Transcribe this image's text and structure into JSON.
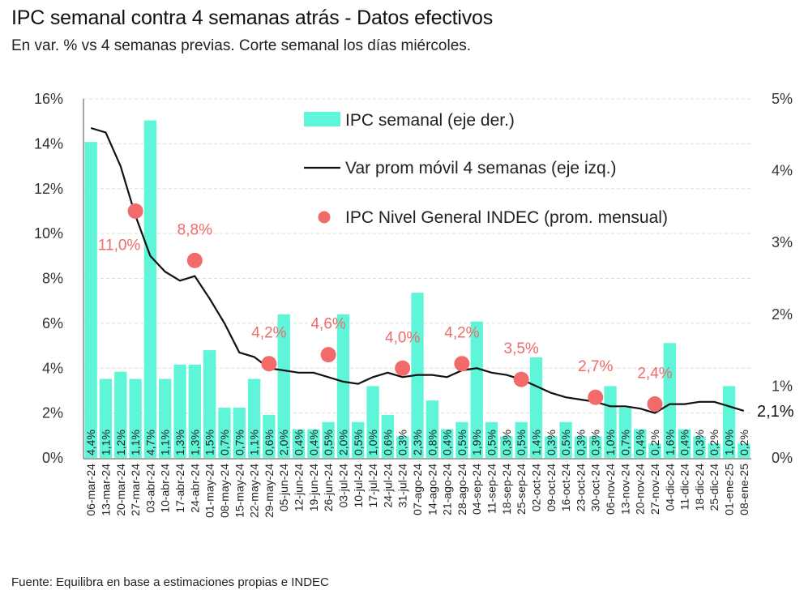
{
  "title": "IPC semanal contra 4 semanas atrás - Datos efectivos",
  "subtitle": "En var. % vs 4 semanas previas. Corte semanal los días miércoles.",
  "source": "Fuente: Equilibra en base a estimaciones propias e INDEC",
  "colors": {
    "bar": "#5ef5d8",
    "line": "#111111",
    "point": "#f26a6a",
    "grid": "#dddddd"
  },
  "chart_data": {
    "type": "bar+line+scatter",
    "title": "IPC semanal contra 4 semanas atrás - Datos efectivos",
    "left_axis": {
      "ylim": [
        0,
        16
      ],
      "ticks": [
        "0%",
        "2%",
        "4%",
        "6%",
        "8%",
        "10%",
        "12%",
        "14%",
        "16%"
      ]
    },
    "right_axis": {
      "ylim": [
        0,
        5
      ],
      "ticks": [
        "0%",
        "1%",
        "2%",
        "3%",
        "4%",
        "5%"
      ]
    },
    "grid": true,
    "legend_position": "top-right",
    "legend": [
      "IPC semanal (eje der.)",
      "Var prom móvil 4 semanas (eje izq.)",
      "IPC Nivel General INDEC (prom. mensual)"
    ],
    "categories": [
      "06-mar-24",
      "13-mar-24",
      "20-mar-24",
      "27-mar-24",
      "03-abr-24",
      "10-abr-24",
      "17-abr-24",
      "24-abr-24",
      "01-may-24",
      "08-may-24",
      "15-may-24",
      "22-may-24",
      "29-may-24",
      "05-jun-24",
      "12-jun-24",
      "19-jun-24",
      "26-jun-24",
      "03-jul-24",
      "10-jul-24",
      "17-jul-24",
      "24-jul-24",
      "31-jul-24",
      "07-ago-24",
      "14-ago-24",
      "21-ago-24",
      "28-ago-24",
      "04-sep-24",
      "11-sep-24",
      "18-sep-24",
      "25-sep-24",
      "02-oct-24",
      "09-oct-24",
      "16-oct-24",
      "23-oct-24",
      "30-oct-24",
      "06-nov-24",
      "13-nov-24",
      "20-nov-24",
      "27-nov-24",
      "04-dic-24",
      "11-dic-24",
      "18-dic-24",
      "25-dic-24",
      "01-ene-25",
      "08-ene-25"
    ],
    "series": [
      {
        "name": "IPC semanal (eje der.)",
        "axis": "right",
        "type": "bar",
        "values": [
          4.4,
          1.1,
          1.2,
          1.1,
          4.7,
          1.1,
          1.3,
          1.3,
          1.5,
          0.7,
          0.7,
          1.1,
          0.6,
          2.0,
          0.4,
          0.4,
          0.5,
          2.0,
          0.5,
          1.0,
          0.6,
          0.3,
          2.3,
          0.8,
          0.4,
          0.5,
          1.9,
          0.5,
          0.3,
          0.5,
          1.4,
          0.3,
          0.5,
          0.3,
          0.3,
          1.0,
          0.7,
          0.4,
          0.2,
          1.6,
          0.4,
          0.3,
          0.2,
          1.0,
          0.2
        ],
        "labels": [
          "4,4%",
          "1,1%",
          "1,2%",
          "1,1%",
          "4,7%",
          "1,1%",
          "1,3%",
          "1,3%",
          "1,5%",
          "0,7%",
          "0,7%",
          "1,1%",
          "0,6%",
          "2,0%",
          "0,4%",
          "0,4%",
          "0,5%",
          "2,0%",
          "0,5%",
          "1,0%",
          "0,6%",
          "0,3%",
          "2,3%",
          "0,8%",
          "0,4%",
          "0,5%",
          "1,9%",
          "0,5%",
          "0,3%",
          "0,5%",
          "1,4%",
          "0,3%",
          "0,5%",
          "0,3%",
          "0,3%",
          "1,0%",
          "0,7%",
          "0,4%",
          "0,2%",
          "1,6%",
          "0,4%",
          "0,3%",
          "0,2%",
          "1,0%",
          "0,2%"
        ]
      },
      {
        "name": "Var prom móvil 4 semanas (eje izq.)",
        "axis": "left",
        "type": "line",
        "values": [
          14.7,
          14.5,
          13.0,
          10.8,
          9.0,
          8.3,
          7.9,
          8.1,
          7.1,
          6.0,
          4.7,
          4.5,
          4.0,
          3.9,
          3.8,
          3.8,
          3.6,
          3.4,
          3.3,
          3.6,
          3.8,
          3.6,
          3.7,
          3.7,
          3.6,
          3.9,
          4.0,
          3.8,
          3.7,
          3.5,
          3.2,
          2.9,
          2.7,
          2.6,
          2.5,
          2.3,
          2.3,
          2.2,
          2.0,
          2.4,
          2.4,
          2.5,
          2.5,
          2.3,
          2.1
        ],
        "end_label": "2,1%"
      },
      {
        "name": "IPC Nivel General INDEC (prom. mensual)",
        "axis": "left",
        "type": "scatter",
        "points": [
          {
            "x": "27-mar-24",
            "y": 11.0,
            "label": "11,0%"
          },
          {
            "x": "24-abr-24",
            "y": 8.8,
            "label": "8,8%"
          },
          {
            "x": "29-may-24",
            "y": 4.2,
            "label": "4,2%"
          },
          {
            "x": "26-jun-24",
            "y": 4.6,
            "label": "4,6%"
          },
          {
            "x": "31-jul-24",
            "y": 4.0,
            "label": "4,0%"
          },
          {
            "x": "28-ago-24",
            "y": 4.2,
            "label": "4,2%"
          },
          {
            "x": "25-sep-24",
            "y": 3.5,
            "label": "3,5%"
          },
          {
            "x": "30-oct-24",
            "y": 2.7,
            "label": "2,7%"
          },
          {
            "x": "27-nov-24",
            "y": 2.4,
            "label": "2,4%"
          }
        ]
      }
    ]
  }
}
